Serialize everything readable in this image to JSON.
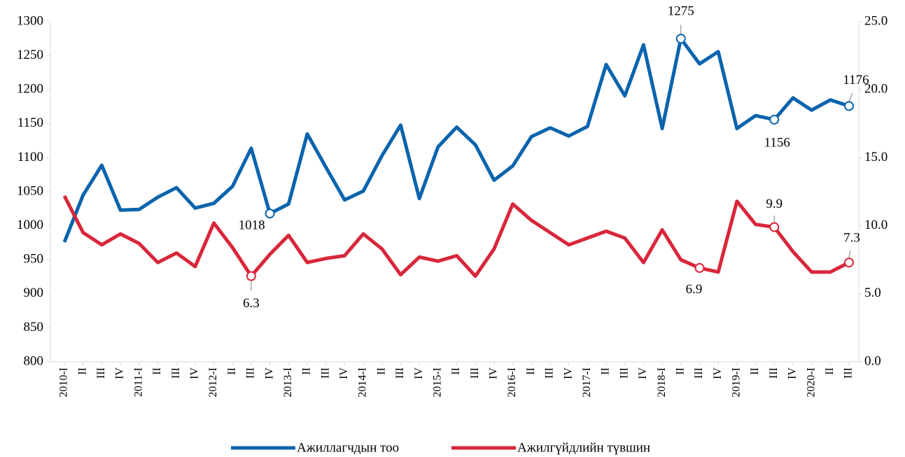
{
  "chart_data": {
    "type": "line",
    "categories": [
      "2010-I",
      "II",
      "III",
      "IV",
      "2011-I",
      "II",
      "III",
      "IV",
      "2012-I",
      "II",
      "III",
      "IV",
      "2013-I",
      "II",
      "III",
      "IV",
      "2014-I",
      "II",
      "III",
      "IV",
      "2015-I",
      "II",
      "III",
      "IV",
      "2016-I",
      "II",
      "III",
      "IV",
      "2017-I",
      "II",
      "III",
      "IV",
      "2018-I",
      "II",
      "III",
      "IV",
      "2019-I",
      "II",
      "III",
      "IV",
      "2020-I",
      "II",
      "III"
    ],
    "series": [
      {
        "name": "Ажиллагчдын тоо",
        "color": "#0a64ad",
        "axis": "y",
        "markers": [
          11,
          33,
          38,
          42
        ],
        "values": [
          976,
          1045,
          1089,
          1023,
          1024,
          1042,
          1056,
          1026,
          1033,
          1058,
          1114,
          1018,
          1032,
          1135,
          1086,
          1038,
          1051,
          1103,
          1148,
          1040,
          1116,
          1145,
          1119,
          1067,
          1088,
          1131,
          1144,
          1132,
          1146,
          1237,
          1191,
          1266,
          1143,
          1275,
          1238,
          1256,
          1143,
          1162,
          1156,
          1188,
          1170,
          1185,
          1176
        ]
      },
      {
        "name": "Ажилгүйдлийн түвшин",
        "color": "#d9263a",
        "axis": "y2",
        "markers": [
          10,
          34,
          38,
          42
        ],
        "values": [
          12.2,
          9.5,
          8.6,
          9.4,
          8.7,
          7.3,
          8.0,
          7.0,
          10.2,
          8.4,
          6.3,
          7.9,
          9.3,
          7.3,
          7.6,
          7.8,
          9.4,
          8.3,
          6.4,
          7.7,
          7.4,
          7.8,
          6.3,
          8.3,
          11.6,
          10.4,
          9.5,
          8.6,
          9.1,
          9.6,
          9.1,
          7.3,
          9.7,
          7.5,
          6.9,
          6.6,
          11.8,
          10.1,
          9.9,
          8.1,
          6.6,
          6.6,
          7.3
        ]
      }
    ],
    "ylim": [
      800,
      1300
    ],
    "yticks": [
      800,
      850,
      900,
      950,
      1000,
      1050,
      1100,
      1150,
      1200,
      1250,
      1300
    ],
    "y2lim": [
      0,
      25
    ],
    "y2ticks": [
      {
        "value": 0,
        "label": "0.0"
      },
      {
        "value": 5,
        "label": "5.0"
      },
      {
        "value": 10,
        "label": "10.0"
      },
      {
        "value": 15,
        "label": "15.0"
      },
      {
        "value": 20,
        "label": "20.0"
      },
      {
        "value": 25,
        "label": "25.0"
      }
    ],
    "grid": false,
    "legend": "bottom"
  }
}
